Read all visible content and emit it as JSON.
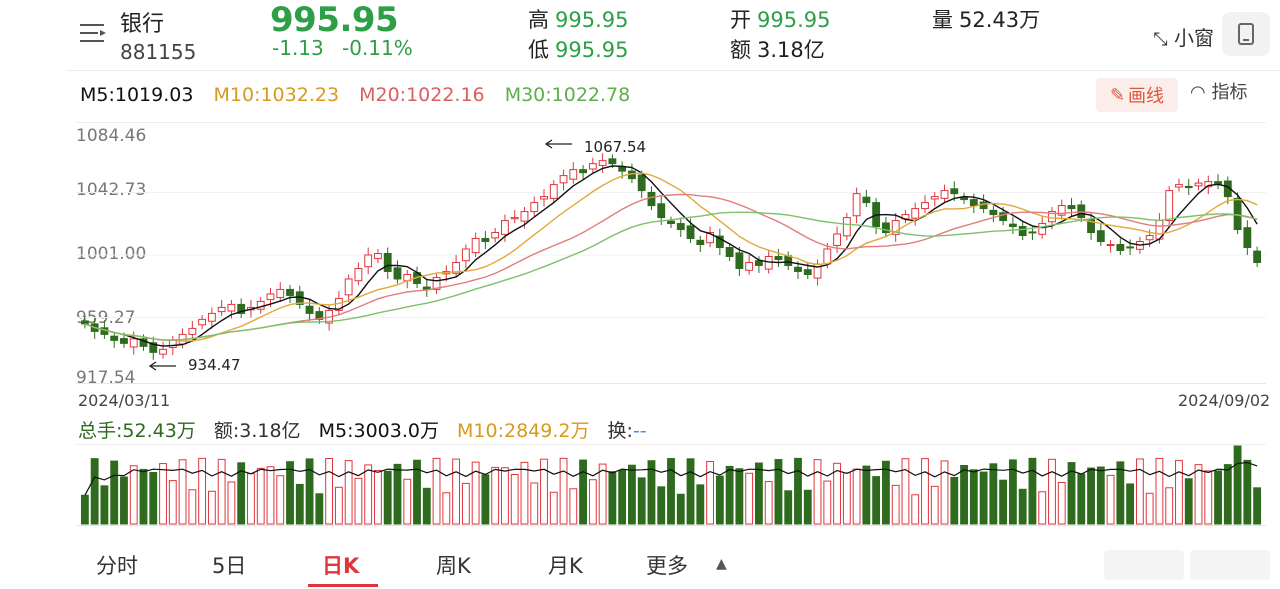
{
  "header": {
    "name": "银行",
    "code": "881155",
    "price": "995.95",
    "change": "-1.13",
    "change_pct": "-0.11%",
    "high_label": "高",
    "high": "995.95",
    "low_label": "低",
    "low": "995.95",
    "open_label": "开",
    "open": "995.95",
    "amount_label": "额",
    "amount": "3.18亿",
    "volume_label": "量",
    "volume": "52.43万",
    "small_window": "小窗"
  },
  "ma": {
    "m5": "M5:1019.03",
    "m10": "M10:1032.23",
    "m20": "M20:1022.16",
    "m30": "M30:1022.78"
  },
  "tools": {
    "draw": "画线",
    "indicator": "指标"
  },
  "price_axis": [
    "1084.46",
    "1042.73",
    "1001.00",
    "959.27",
    "917.54"
  ],
  "annotations": {
    "high_mark": "1067.54",
    "low_mark": "934.47"
  },
  "dates": {
    "start": "2024/03/11",
    "end": "2024/09/02"
  },
  "volume_info": {
    "total": "总手:52.43万",
    "amount": "额:3.18亿",
    "m5": "M5:3003.0万",
    "m10": "M10:2849.2万",
    "turnover": "换:",
    "turnover_val": "--"
  },
  "tabs": [
    "分时",
    "5日",
    "日K",
    "周K",
    "月K",
    "更多"
  ],
  "active_tab": "日K",
  "colors": {
    "up": "#e0353c",
    "down": "#2e6b1e",
    "m5": "#111111",
    "m10": "#e3a83a",
    "m20": "#e27d7d",
    "m30": "#7cc26a"
  },
  "chart_data": {
    "type": "candlestick",
    "ylim": [
      917.54,
      1084.46
    ],
    "x_start": "2024/03/11",
    "x_end": "2024/09/02",
    "close": [
      955,
      950,
      948,
      944,
      942,
      945,
      940,
      936,
      938,
      944,
      948,
      952,
      958,
      962,
      966,
      968,
      962,
      966,
      970,
      975,
      978,
      974,
      968,
      962,
      958,
      964,
      972,
      985,
      992,
      1001,
      1002,
      990,
      985,
      988,
      982,
      978,
      986,
      990,
      996,
      1005,
      1012,
      1010,
      1016,
      1024,
      1026,
      1030,
      1036,
      1040,
      1048,
      1054,
      1058,
      1056,
      1062,
      1064,
      1062,
      1057,
      1052,
      1044,
      1034,
      1026,
      1022,
      1018,
      1012,
      1008,
      1016,
      1006,
      1000,
      992,
      996,
      994,
      1000,
      998,
      994,
      990,
      988,
      995,
      1005,
      1015,
      1026,
      1042,
      1036,
      1020,
      1016,
      1024,
      1028,
      1032,
      1036,
      1040,
      1044,
      1042,
      1038,
      1034,
      1032,
      1028,
      1024,
      1020,
      1014,
      1016,
      1022,
      1030,
      1034,
      1032,
      1026,
      1016,
      1010,
      1008,
      1004,
      1006,
      1010,
      1014,
      1024,
      1044,
      1048,
      1046,
      1049,
      1050,
      1048,
      1040,
      1018,
      1006,
      996
    ]
  }
}
